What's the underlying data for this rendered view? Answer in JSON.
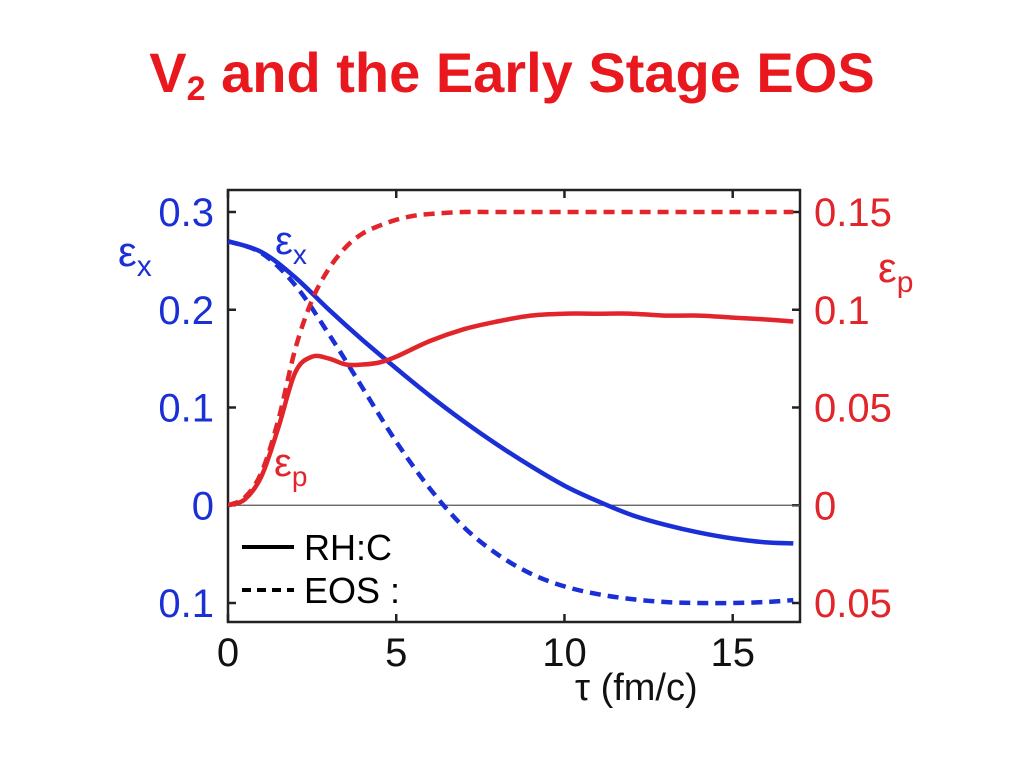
{
  "slide": {
    "title_letter": "V",
    "title_subscript": "2",
    "title_rest": " and the Early Stage EOS"
  },
  "colors": {
    "left_axis": "#1b2fd6",
    "right_axis": "#e2252b",
    "title": "#e8181e",
    "legend": "#000000"
  },
  "chart_data": {
    "type": "line",
    "xlabel": "τ (fm/c)",
    "xlim": [
      0,
      17
    ],
    "xticks": [
      0,
      5,
      10,
      15
    ],
    "xtick_labels": [
      "0",
      "5",
      "10",
      "15"
    ],
    "y_left": {
      "symbol": "ε",
      "subscript": "x",
      "lim": [
        -0.1,
        0.3
      ],
      "ticks": [
        0.3,
        0.2,
        0.1,
        0,
        -0.1
      ],
      "tick_labels": [
        "0.3",
        "0.2",
        "0.1",
        "0",
        "0.1"
      ]
    },
    "y_right": {
      "symbol": "ε",
      "subscript": "p",
      "lim": [
        -0.05,
        0.15
      ],
      "ticks": [
        0.15,
        0.1,
        0.05,
        0,
        -0.05
      ],
      "tick_labels": [
        "0.15",
        "0.1",
        "0.05",
        "0",
        "0.05"
      ]
    },
    "zero_line": true,
    "legend": {
      "placement": "bottom-left",
      "entries": [
        {
          "label": "RH:C",
          "style": "solid"
        },
        {
          "label": "EOS :",
          "style": "dashed"
        }
      ]
    },
    "annotations": [
      {
        "symbol": "ε",
        "subscript": "x",
        "series": "left"
      },
      {
        "symbol": "ε",
        "subscript": "p",
        "series": "right"
      }
    ],
    "series": [
      {
        "axis": "left",
        "style": "solid",
        "x": [
          0,
          1,
          2,
          3,
          4,
          5,
          6,
          7,
          8,
          9,
          10,
          11,
          12,
          13,
          14,
          15,
          16,
          16.8
        ],
        "y": [
          0.27,
          0.259,
          0.233,
          0.2,
          0.169,
          0.14,
          0.112,
          0.086,
          0.062,
          0.04,
          0.02,
          0.004,
          -0.01,
          -0.02,
          -0.028,
          -0.034,
          -0.038,
          -0.039
        ]
      },
      {
        "axis": "left",
        "style": "dashed",
        "x": [
          0,
          1,
          2,
          3,
          4,
          5,
          6,
          7,
          8,
          9,
          10,
          11,
          12,
          13,
          14,
          15,
          16,
          16.8
        ],
        "y": [
          0.27,
          0.258,
          0.225,
          0.175,
          0.12,
          0.065,
          0.017,
          -0.022,
          -0.05,
          -0.07,
          -0.083,
          -0.091,
          -0.096,
          -0.099,
          -0.1,
          -0.1,
          -0.099,
          -0.097
        ]
      },
      {
        "axis": "right",
        "style": "solid",
        "x": [
          0,
          0.5,
          1,
          1.5,
          2,
          2.5,
          3,
          3.5,
          4,
          4.5,
          5,
          6,
          7,
          8,
          9,
          10,
          11,
          12,
          13,
          14,
          15,
          16,
          16.8
        ],
        "y": [
          0.0,
          0.003,
          0.015,
          0.04,
          0.068,
          0.076,
          0.075,
          0.072,
          0.072,
          0.073,
          0.076,
          0.084,
          0.09,
          0.094,
          0.097,
          0.098,
          0.098,
          0.098,
          0.097,
          0.097,
          0.096,
          0.095,
          0.094
        ]
      },
      {
        "axis": "right",
        "style": "dashed",
        "x": [
          0,
          0.5,
          1,
          1.5,
          2,
          2.5,
          3,
          3.5,
          4,
          4.5,
          5,
          5.5,
          6,
          7,
          8,
          10,
          12,
          14,
          16.8
        ],
        "y": [
          0.0,
          0.004,
          0.017,
          0.044,
          0.08,
          0.105,
          0.121,
          0.132,
          0.139,
          0.143,
          0.146,
          0.148,
          0.149,
          0.15,
          0.15,
          0.15,
          0.15,
          0.15,
          0.15
        ]
      }
    ]
  }
}
